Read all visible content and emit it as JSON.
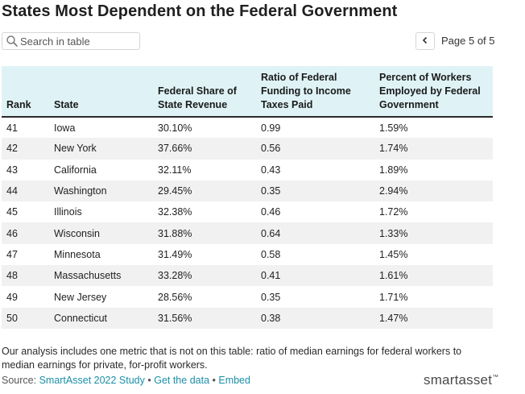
{
  "title": "States Most Dependent on the Federal Government",
  "search": {
    "placeholder": "Search in table",
    "icon": "search-icon"
  },
  "pagination": {
    "label": "Page 5 of 5",
    "prev_icon": "chevron-left-icon"
  },
  "table": {
    "headers": {
      "rank": "Rank",
      "state": "State",
      "federal_share_line1": "Federal Share of",
      "federal_share_line2": "State Revenue",
      "ratio_line1": "Ratio of Federal",
      "ratio_line2": "Funding to Income",
      "ratio_line3": "Taxes Paid",
      "percent_line1": "Percent of Workers",
      "percent_line2": "Employed by Federal",
      "percent_line3": "Government"
    },
    "rows": [
      {
        "rank": "41",
        "state": "Iowa",
        "federal_share": "30.10%",
        "ratio": "0.99",
        "percent_workers": "1.59%"
      },
      {
        "rank": "42",
        "state": "New York",
        "federal_share": "37.66%",
        "ratio": "0.56",
        "percent_workers": "1.74%"
      },
      {
        "rank": "43",
        "state": "California",
        "federal_share": "32.11%",
        "ratio": "0.43",
        "percent_workers": "1.89%"
      },
      {
        "rank": "44",
        "state": "Washington",
        "federal_share": "29.45%",
        "ratio": "0.35",
        "percent_workers": "2.94%"
      },
      {
        "rank": "45",
        "state": "Illinois",
        "federal_share": "32.38%",
        "ratio": "0.46",
        "percent_workers": "1.72%"
      },
      {
        "rank": "46",
        "state": "Wisconsin",
        "federal_share": "31.88%",
        "ratio": "0.64",
        "percent_workers": "1.33%"
      },
      {
        "rank": "47",
        "state": "Minnesota",
        "federal_share": "31.49%",
        "ratio": "0.58",
        "percent_workers": "1.45%"
      },
      {
        "rank": "48",
        "state": "Massachusetts",
        "federal_share": "33.28%",
        "ratio": "0.41",
        "percent_workers": "1.61%"
      },
      {
        "rank": "49",
        "state": "New Jersey",
        "federal_share": "28.56%",
        "ratio": "0.35",
        "percent_workers": "1.71%"
      },
      {
        "rank": "50",
        "state": "Connecticut",
        "federal_share": "31.56%",
        "ratio": "0.38",
        "percent_workers": "1.47%"
      }
    ]
  },
  "note": "Our analysis includes one metric that is not on this table: ratio of median earnings for federal workers to median earnings for private, for-profit workers.",
  "source": {
    "prefix": "Source: ",
    "link_study": "SmartAsset 2022 Study",
    "sep1": " • ",
    "link_data": "Get the data",
    "sep2": " • ",
    "link_embed": "Embed"
  },
  "logo": {
    "text": "smartasset",
    "mark": "™"
  },
  "colors": {
    "header_bg": "#dff3f6",
    "link": "#1a8fa8",
    "stripe": "#f1f1f1"
  }
}
